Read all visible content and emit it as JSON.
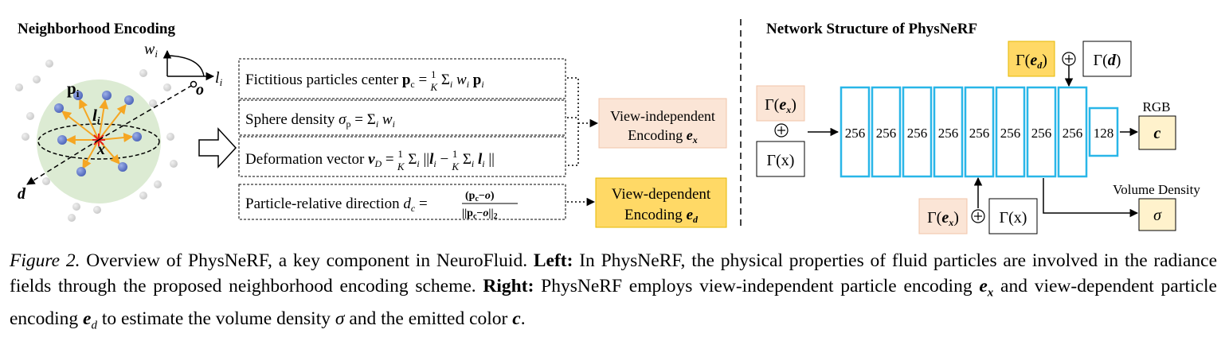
{
  "left": {
    "title": "Neighborhood Encoding",
    "labels": {
      "w_i": "w",
      "w_i_sub": "i",
      "l_i_axis": "l",
      "l_i_axis_sub": "i",
      "o_point": "o",
      "p_i": "p",
      "p_i_sub": "i",
      "l_i": "l",
      "l_i_sub": "i",
      "x": "x",
      "d": "d"
    },
    "boxes": {
      "center": {
        "text": "Fictitious particles center ",
        "formula": "p_c = (1/K) Σ_i w_i p_i"
      },
      "density": {
        "text": "Sphere density ",
        "formula": "σ_p = Σ_i w_i"
      },
      "deform": {
        "text": "Deformation vector ",
        "formula": "v_D = (1/K) Σ_i || l_i − (1/K) Σ_i l_i ||"
      },
      "direction": {
        "text": "Particle-relative direction ",
        "formula": "d_c = (p_c − o) / ||p_c − o||_2"
      }
    },
    "view_independent": {
      "line1": "View-independent",
      "line2": "Encoding ",
      "var": "e",
      "sub": "x",
      "color": "#fbe5d6"
    },
    "view_dependent": {
      "line1": "View-dependent",
      "line2": "Encoding ",
      "var": "e",
      "sub": "d",
      "color": "#ffd966"
    }
  },
  "right": {
    "title": "Network Structure of PhysNeRF",
    "layers": [
      "256",
      "256",
      "256",
      "256",
      "256",
      "256",
      "256",
      "256",
      "128"
    ],
    "layer_color": "#29b6e8",
    "inputs": {
      "gamma_ex": "Γ(e_x)",
      "plus": "⊕",
      "gamma_x": "Γ(x)",
      "gamma_ed": "Γ(e_d)",
      "gamma_d": "Γ(d)"
    },
    "outputs": {
      "rgb_label": "RGB",
      "c": "c",
      "density_label": "Volume Density",
      "sigma": "σ"
    }
  },
  "caption": {
    "figure_label": "Figure 2.",
    "part1": " Overview of PhysNeRF, a key component in NeuroFluid. ",
    "left_label": "Left:",
    "part2": " In PhysNeRF, the physical properties of fluid particles are involved in the radiance fields through the proposed neighborhood encoding scheme. ",
    "right_label": "Right:",
    "part3": " PhysNeRF employs view-independent particle encoding ",
    "ex": "e",
    "ex_sub": "x",
    "part4": " and view-dependent particle encoding ",
    "ed": "e",
    "ed_sub": "d",
    "part5": " to estimate the volume density ",
    "sigma": "σ",
    "part6": " and the emitted color ",
    "c": "c",
    "part7": "."
  }
}
